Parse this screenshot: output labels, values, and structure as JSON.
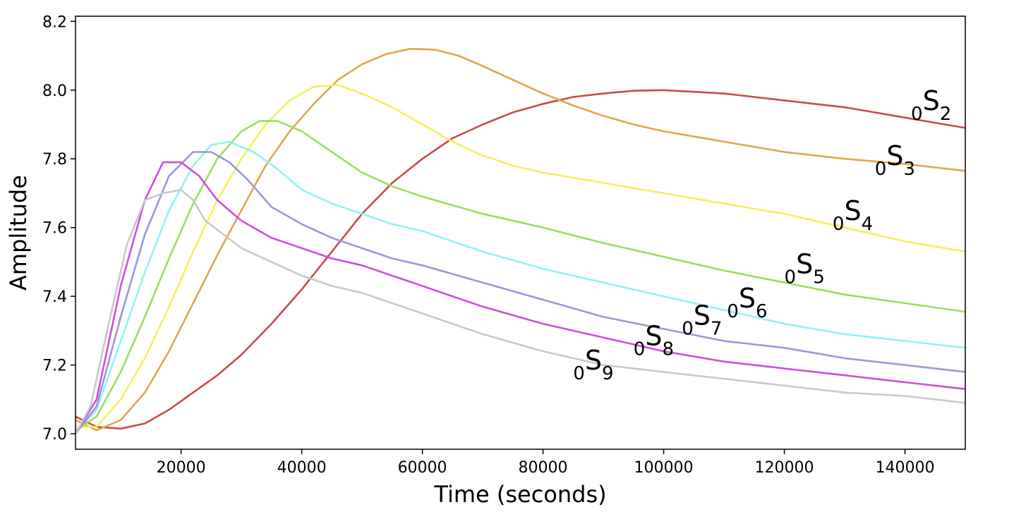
{
  "chart_data": {
    "type": "line",
    "title": "",
    "xlabel": "Time (seconds)",
    "ylabel": "Amplitude",
    "xlim": [
      2500,
      150000
    ],
    "ylim": [
      6.955,
      8.215
    ],
    "xticks": [
      20000,
      40000,
      60000,
      80000,
      100000,
      120000,
      140000
    ],
    "xtick_labels": [
      "20000",
      "40000",
      "60000",
      "80000",
      "100000",
      "120000",
      "140000"
    ],
    "yticks": [
      7.0,
      7.2,
      7.4,
      7.6,
      7.8,
      8.0,
      8.2
    ],
    "ytick_labels": [
      "7.0",
      "7.2",
      "7.4",
      "7.6",
      "7.8",
      "8.0",
      "8.2"
    ],
    "grid": false,
    "legend": "none",
    "series": [
      {
        "name": "0S2",
        "label_prefix": "0",
        "label_main": "S",
        "label_sub": "2",
        "label_at": [
          141000,
          7.93
        ],
        "color": "#cc4a4a",
        "x": [
          2500,
          6000,
          10000,
          14000,
          18000,
          22000,
          26000,
          30000,
          35000,
          40000,
          45000,
          50000,
          55000,
          60000,
          65000,
          70000,
          75000,
          80000,
          85000,
          90000,
          95000,
          100000,
          105000,
          110000,
          115000,
          120000,
          125000,
          130000,
          135000,
          140000,
          145000,
          150000
        ],
        "y": [
          7.05,
          7.02,
          7.015,
          7.03,
          7.07,
          7.12,
          7.17,
          7.23,
          7.32,
          7.42,
          7.53,
          7.64,
          7.73,
          7.8,
          7.86,
          7.9,
          7.935,
          7.96,
          7.98,
          7.99,
          7.998,
          8.0,
          7.995,
          7.99,
          7.98,
          7.97,
          7.96,
          7.95,
          7.935,
          7.92,
          7.905,
          7.89
        ]
      },
      {
        "name": "0S3",
        "label_prefix": "0",
        "label_main": "S",
        "label_sub": "3",
        "label_at": [
          135000,
          7.77
        ],
        "color": "#e0a64a",
        "x": [
          2500,
          6000,
          10000,
          14000,
          18000,
          22000,
          26000,
          30000,
          34000,
          38000,
          42000,
          46000,
          50000,
          54000,
          58000,
          62000,
          66000,
          70000,
          75000,
          80000,
          85000,
          90000,
          95000,
          100000,
          110000,
          120000,
          130000,
          140000,
          150000
        ],
        "y": [
          7.04,
          7.01,
          7.04,
          7.12,
          7.24,
          7.38,
          7.52,
          7.65,
          7.78,
          7.88,
          7.96,
          8.03,
          8.075,
          8.105,
          8.12,
          8.118,
          8.1,
          8.07,
          8.03,
          7.99,
          7.955,
          7.925,
          7.9,
          7.88,
          7.85,
          7.82,
          7.8,
          7.785,
          7.765
        ]
      },
      {
        "name": "0S4",
        "label_prefix": "0",
        "label_main": "S",
        "label_sub": "4",
        "label_at": [
          128000,
          7.61
        ],
        "color": "#f5f05a",
        "x": [
          2500,
          6000,
          10000,
          14000,
          18000,
          22000,
          26000,
          30000,
          34000,
          38000,
          42000,
          46000,
          50000,
          55000,
          60000,
          65000,
          70000,
          75000,
          80000,
          90000,
          100000,
          110000,
          120000,
          130000,
          140000,
          150000
        ],
        "y": [
          7.02,
          7.02,
          7.1,
          7.22,
          7.37,
          7.53,
          7.68,
          7.8,
          7.9,
          7.97,
          8.01,
          8.015,
          7.99,
          7.95,
          7.9,
          7.85,
          7.81,
          7.78,
          7.76,
          7.73,
          7.7,
          7.67,
          7.64,
          7.6,
          7.56,
          7.53
        ]
      },
      {
        "name": "0S5",
        "label_prefix": "0",
        "label_main": "S",
        "label_sub": "5",
        "label_at": [
          120000,
          7.455
        ],
        "color": "#98e05a",
        "x": [
          2500,
          6000,
          10000,
          14000,
          18000,
          22000,
          26000,
          30000,
          33000,
          36000,
          40000,
          45000,
          50000,
          55000,
          60000,
          70000,
          80000,
          90000,
          100000,
          110000,
          120000,
          130000,
          140000,
          150000
        ],
        "y": [
          7.01,
          7.05,
          7.18,
          7.34,
          7.51,
          7.67,
          7.8,
          7.88,
          7.91,
          7.91,
          7.88,
          7.82,
          7.76,
          7.72,
          7.69,
          7.64,
          7.6,
          7.555,
          7.515,
          7.475,
          7.44,
          7.405,
          7.38,
          7.355
        ]
      },
      {
        "name": "0S6",
        "label_prefix": "0",
        "label_main": "S",
        "label_sub": "6",
        "label_at": [
          110500,
          7.355
        ],
        "color": "#8ff3f5",
        "x": [
          2500,
          6000,
          10000,
          14000,
          18000,
          22000,
          25000,
          28000,
          32000,
          36000,
          40000,
          45000,
          50000,
          55000,
          60000,
          70000,
          80000,
          90000,
          100000,
          110000,
          120000,
          130000,
          140000,
          150000
        ],
        "y": [
          7.005,
          7.07,
          7.27,
          7.47,
          7.65,
          7.78,
          7.84,
          7.85,
          7.82,
          7.77,
          7.71,
          7.67,
          7.64,
          7.61,
          7.59,
          7.53,
          7.48,
          7.44,
          7.4,
          7.36,
          7.32,
          7.29,
          7.27,
          7.25
        ]
      },
      {
        "name": "0S7",
        "label_prefix": "0",
        "label_main": "S",
        "label_sub": "7",
        "label_at": [
          103000,
          7.305
        ],
        "color": "#9a97dc",
        "x": [
          2500,
          6000,
          10000,
          14000,
          18000,
          22000,
          25000,
          28000,
          31000,
          35000,
          40000,
          45000,
          50000,
          55000,
          60000,
          70000,
          80000,
          90000,
          100000,
          110000,
          120000,
          130000,
          140000,
          150000
        ],
        "y": [
          7.0,
          7.08,
          7.34,
          7.58,
          7.75,
          7.82,
          7.82,
          7.79,
          7.74,
          7.66,
          7.61,
          7.57,
          7.54,
          7.51,
          7.49,
          7.44,
          7.39,
          7.34,
          7.305,
          7.27,
          7.25,
          7.22,
          7.2,
          7.18
        ]
      },
      {
        "name": "0S8",
        "label_prefix": "0",
        "label_main": "S",
        "label_sub": "8",
        "label_at": [
          95000,
          7.245
        ],
        "color": "#cf4de0",
        "x": [
          2500,
          6000,
          10000,
          14000,
          17000,
          20000,
          23000,
          26000,
          30000,
          35000,
          40000,
          45000,
          50000,
          55000,
          60000,
          70000,
          80000,
          90000,
          100000,
          110000,
          120000,
          130000,
          140000,
          150000
        ],
        "y": [
          7.0,
          7.1,
          7.43,
          7.68,
          7.79,
          7.79,
          7.75,
          7.68,
          7.62,
          7.57,
          7.54,
          7.51,
          7.49,
          7.46,
          7.43,
          7.37,
          7.32,
          7.28,
          7.24,
          7.21,
          7.19,
          7.17,
          7.15,
          7.13
        ]
      },
      {
        "name": "0S9",
        "label_prefix": "0",
        "label_main": "S",
        "label_sub": "9",
        "label_at": [
          85000,
          7.175
        ],
        "color": "#c8c8c8",
        "x": [
          2500,
          5000,
          8000,
          11000,
          14000,
          17000,
          20000,
          22000,
          24000,
          27000,
          30000,
          35000,
          40000,
          45000,
          50000,
          55000,
          60000,
          70000,
          80000,
          90000,
          100000,
          110000,
          120000,
          130000,
          140000,
          150000
        ],
        "y": [
          7.0,
          7.08,
          7.32,
          7.55,
          7.68,
          7.7,
          7.71,
          7.68,
          7.62,
          7.58,
          7.54,
          7.5,
          7.46,
          7.43,
          7.41,
          7.38,
          7.35,
          7.29,
          7.24,
          7.2,
          7.18,
          7.16,
          7.14,
          7.12,
          7.11,
          7.09
        ]
      }
    ]
  }
}
